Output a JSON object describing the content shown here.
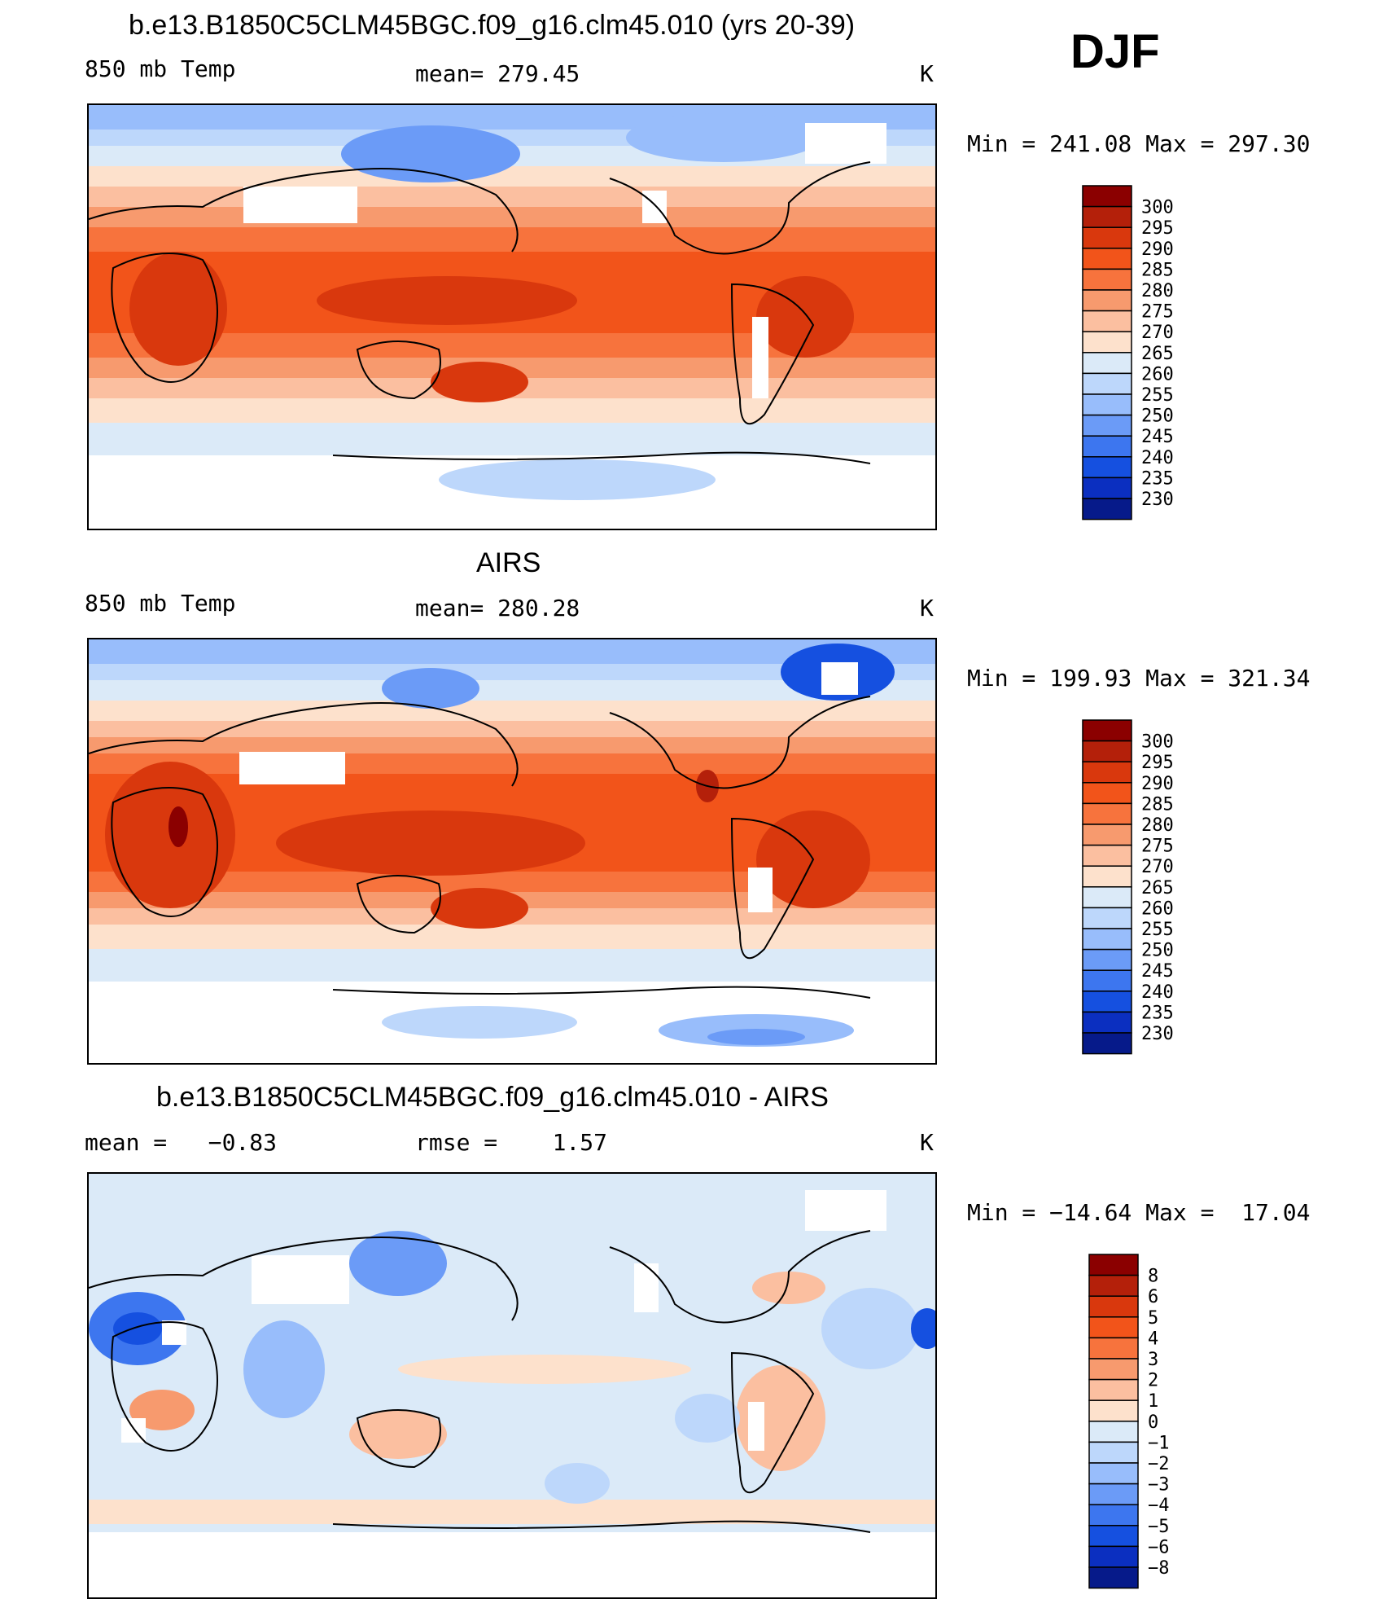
{
  "season": "DJF",
  "panels": [
    {
      "title": "b.e13.B1850C5CLM45BGC.f09_g16.clm45.010 (yrs 20-39)",
      "left": "850 mb Temp",
      "center": "mean= 279.45",
      "right": "K",
      "minmax": "Min = 241.08 Max = 297.30",
      "colorbar": {
        "labels": [
          "300",
          "295",
          "290",
          "285",
          "280",
          "275",
          "270",
          "265",
          "260",
          "255",
          "250",
          "245",
          "240",
          "235",
          "230"
        ],
        "colors": [
          "#8b0000",
          "#b4200a",
          "#d9380d",
          "#f2541a",
          "#f7733d",
          "#f79a6e",
          "#fbbfa0",
          "#fde1cc",
          "#dbeaf8",
          "#bdd7fb",
          "#98bdfb",
          "#6b9bf7",
          "#3d76ef",
          "#1550e0",
          "#0b2fc0",
          "#061a8a"
        ]
      }
    },
    {
      "title": "AIRS",
      "left": "850 mb Temp",
      "center": "mean= 280.28",
      "right": "K",
      "minmax": "Min = 199.93 Max = 321.34",
      "colorbar": {
        "labels": [
          "300",
          "295",
          "290",
          "285",
          "280",
          "275",
          "270",
          "265",
          "260",
          "255",
          "250",
          "245",
          "240",
          "235",
          "230"
        ],
        "colors": [
          "#8b0000",
          "#b4200a",
          "#d9380d",
          "#f2541a",
          "#f7733d",
          "#f79a6e",
          "#fbbfa0",
          "#fde1cc",
          "#dbeaf8",
          "#bdd7fb",
          "#98bdfb",
          "#6b9bf7",
          "#3d76ef",
          "#1550e0",
          "#0b2fc0",
          "#061a8a"
        ]
      }
    },
    {
      "title": "b.e13.B1850C5CLM45BGC.f09_g16.clm45.010 - AIRS",
      "left": "mean =   −0.83",
      "center": "rmse =    1.57",
      "right": "K",
      "minmax": "Min = −14.64 Max =  17.04",
      "colorbar": {
        "labels": [
          "8",
          "6",
          "5",
          "4",
          "3",
          "2",
          "1",
          "0",
          "−1",
          "−2",
          "−3",
          "−4",
          "−5",
          "−6",
          "−8"
        ],
        "colors": [
          "#8b0000",
          "#b4200a",
          "#d9380d",
          "#f2541a",
          "#f7733d",
          "#f79a6e",
          "#fbbfa0",
          "#fde1cc",
          "#dbeaf8",
          "#bdd7fb",
          "#98bdfb",
          "#6b9bf7",
          "#3d76ef",
          "#1550e0",
          "#0b2fc0",
          "#061a8a"
        ]
      }
    }
  ]
}
